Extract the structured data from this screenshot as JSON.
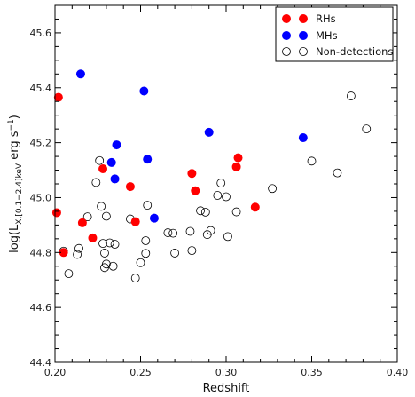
{
  "chart_data": {
    "type": "scatter",
    "xlabel": "Redshift",
    "ylabel_main": "log(L",
    "ylabel_sub": "X,[0.1−2.4]keV",
    "ylabel_units": " erg s",
    "ylabel_sup": "−1",
    "ylabel_close": ")",
    "xlim": [
      0.2,
      0.4
    ],
    "ylim": [
      44.4,
      45.7
    ],
    "x_ticks": [
      0.2,
      0.25,
      0.3,
      0.35,
      0.4
    ],
    "x_tick_labels": [
      "0.20",
      "0.25",
      "0.30",
      "0.35",
      "0.40"
    ],
    "y_ticks": [
      44.4,
      44.6,
      44.8,
      45.0,
      45.2,
      45.4,
      45.6
    ],
    "y_tick_labels": [
      "44.4",
      "44.6",
      "44.8",
      "45.0",
      "45.2",
      "45.4",
      "45.6"
    ],
    "legend_position": "top-right",
    "series": [
      {
        "name": "RHs",
        "color": "#ff0000",
        "filled": true,
        "points": [
          [
            0.202,
            45.365
          ],
          [
            0.201,
            44.945
          ],
          [
            0.205,
            44.8
          ],
          [
            0.216,
            44.908
          ],
          [
            0.222,
            44.853
          ],
          [
            0.228,
            45.105
          ],
          [
            0.244,
            45.04
          ],
          [
            0.247,
            44.912
          ],
          [
            0.28,
            45.088
          ],
          [
            0.282,
            45.025
          ],
          [
            0.307,
            45.145
          ],
          [
            0.306,
            45.112
          ],
          [
            0.317,
            44.965
          ]
        ]
      },
      {
        "name": "MHs",
        "color": "#0000ff",
        "filled": true,
        "points": [
          [
            0.215,
            45.45
          ],
          [
            0.252,
            45.388
          ],
          [
            0.236,
            45.192
          ],
          [
            0.233,
            45.128
          ],
          [
            0.235,
            45.068
          ],
          [
            0.254,
            45.14
          ],
          [
            0.258,
            44.925
          ],
          [
            0.29,
            45.238
          ],
          [
            0.345,
            45.218
          ]
        ]
      },
      {
        "name": "Non-detections",
        "color": "#000000",
        "filled": false,
        "points": [
          [
            0.205,
            44.805
          ],
          [
            0.208,
            44.723
          ],
          [
            0.213,
            44.793
          ],
          [
            0.214,
            44.815
          ],
          [
            0.219,
            44.93
          ],
          [
            0.224,
            45.055
          ],
          [
            0.226,
            45.135
          ],
          [
            0.227,
            44.968
          ],
          [
            0.228,
            44.833
          ],
          [
            0.229,
            44.745
          ],
          [
            0.23,
            44.758
          ],
          [
            0.229,
            44.798
          ],
          [
            0.23,
            44.932
          ],
          [
            0.232,
            44.835
          ],
          [
            0.234,
            44.75
          ],
          [
            0.235,
            44.83
          ],
          [
            0.244,
            44.922
          ],
          [
            0.247,
            44.707
          ],
          [
            0.25,
            44.763
          ],
          [
            0.253,
            44.797
          ],
          [
            0.253,
            44.843
          ],
          [
            0.254,
            44.972
          ],
          [
            0.266,
            44.872
          ],
          [
            0.269,
            44.87
          ],
          [
            0.27,
            44.798
          ],
          [
            0.279,
            44.877
          ],
          [
            0.28,
            44.807
          ],
          [
            0.285,
            44.952
          ],
          [
            0.288,
            44.947
          ],
          [
            0.289,
            44.865
          ],
          [
            0.291,
            44.88
          ],
          [
            0.295,
            45.008
          ],
          [
            0.297,
            45.053
          ],
          [
            0.3,
            45.003
          ],
          [
            0.301,
            44.858
          ],
          [
            0.306,
            44.948
          ],
          [
            0.327,
            45.033
          ],
          [
            0.35,
            45.133
          ],
          [
            0.365,
            45.09
          ],
          [
            0.373,
            45.37
          ],
          [
            0.382,
            45.25
          ]
        ]
      }
    ]
  }
}
